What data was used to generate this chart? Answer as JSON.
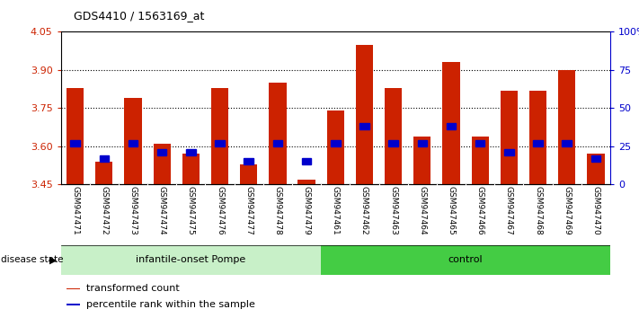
{
  "title": "GDS4410 / 1563169_at",
  "samples": [
    "GSM947471",
    "GSM947472",
    "GSM947473",
    "GSM947474",
    "GSM947475",
    "GSM947476",
    "GSM947477",
    "GSM947478",
    "GSM947479",
    "GSM947461",
    "GSM947462",
    "GSM947463",
    "GSM947464",
    "GSM947465",
    "GSM947466",
    "GSM947467",
    "GSM947468",
    "GSM947469",
    "GSM947470"
  ],
  "transformed_count": [
    3.83,
    3.54,
    3.79,
    3.61,
    3.57,
    3.83,
    3.53,
    3.85,
    3.47,
    3.74,
    4.0,
    3.83,
    3.64,
    3.93,
    3.64,
    3.82,
    3.82,
    3.9,
    3.57
  ],
  "percentile_rank": [
    26,
    16,
    26,
    20,
    20,
    26,
    14,
    26,
    14,
    26,
    37,
    26,
    26,
    37,
    26,
    20,
    26,
    26,
    16
  ],
  "groups": [
    {
      "name": "infantile-onset Pompe",
      "start": 0,
      "end": 9
    },
    {
      "name": "control",
      "start": 9,
      "end": 19
    }
  ],
  "group_colors": [
    "#c8f0c8",
    "#44cc44"
  ],
  "y_min": 3.45,
  "y_max": 4.05,
  "y_ticks_left": [
    3.45,
    3.6,
    3.75,
    3.9,
    4.05
  ],
  "y_ticks_right": [
    0,
    25,
    50,
    75,
    100
  ],
  "grid_lines": [
    3.6,
    3.75,
    3.9
  ],
  "bar_color": "#cc2200",
  "percentile_color": "#0000cc",
  "sample_bg_color": "#d0d0d0",
  "plot_bg_color": "#ffffff",
  "title_fontsize": 9,
  "tick_fontsize": 8,
  "sample_fontsize": 6.5,
  "group_fontsize": 8,
  "legend_fontsize": 8,
  "legend_items": [
    {
      "label": "transformed count",
      "color": "#cc2200"
    },
    {
      "label": "percentile rank within the sample",
      "color": "#0000cc"
    }
  ],
  "bar_width": 0.6
}
